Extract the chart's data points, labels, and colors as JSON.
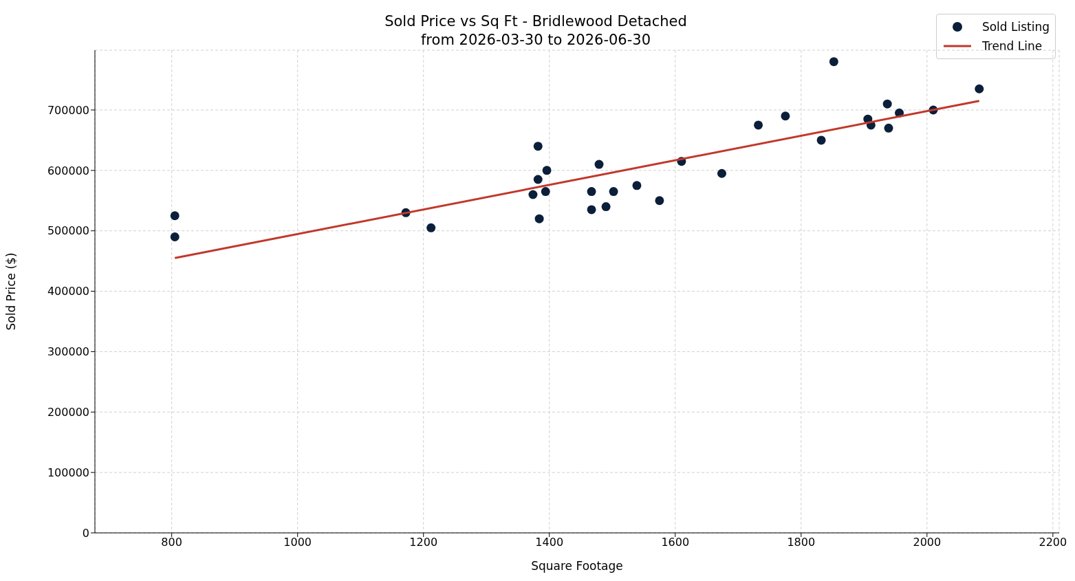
{
  "chart_data": {
    "type": "scatter",
    "title": "Sold Price vs Sq Ft - Bridlewood Detached",
    "subtitle": "from 2026-03-30 to 2026-06-30",
    "xlabel": "Square Footage",
    "ylabel": "Sold Price ($)",
    "series": [
      {
        "name": "Sold Listing",
        "color": "#0b1f3a",
        "marker": "circle",
        "x": [
          805,
          805,
          1172,
          1212,
          1374,
          1382,
          1382,
          1396,
          1394,
          1384,
          1467,
          1467,
          1479,
          1490,
          1502,
          1539,
          1575,
          1610,
          1674,
          1732,
          1775,
          1852,
          1832,
          1906,
          1911,
          1937,
          1939,
          1956,
          2010,
          2083
        ],
        "values": [
          525000,
          490000,
          530000,
          505000,
          560000,
          585000,
          640000,
          600000,
          565000,
          520000,
          565000,
          535000,
          610000,
          540000,
          565000,
          575000,
          550000,
          615000,
          595000,
          675000,
          690000,
          780000,
          650000,
          685000,
          675000,
          710000,
          670000,
          695000,
          700000,
          735000
        ]
      },
      {
        "name": "Trend Line",
        "type": "line",
        "color": "#c0392b",
        "marker": "none",
        "x": [
          805,
          2083
        ],
        "values": [
          455000,
          715000
        ]
      }
    ],
    "xlim": [
      678,
      2210
    ],
    "ylim": [
      0,
      799000
    ],
    "xticks": [
      800,
      1000,
      1200,
      1400,
      1600,
      1800,
      2000,
      2200
    ],
    "yticks": [
      0,
      100000,
      200000,
      300000,
      400000,
      500000,
      600000,
      700000
    ],
    "grid": true,
    "legend": "top right"
  }
}
